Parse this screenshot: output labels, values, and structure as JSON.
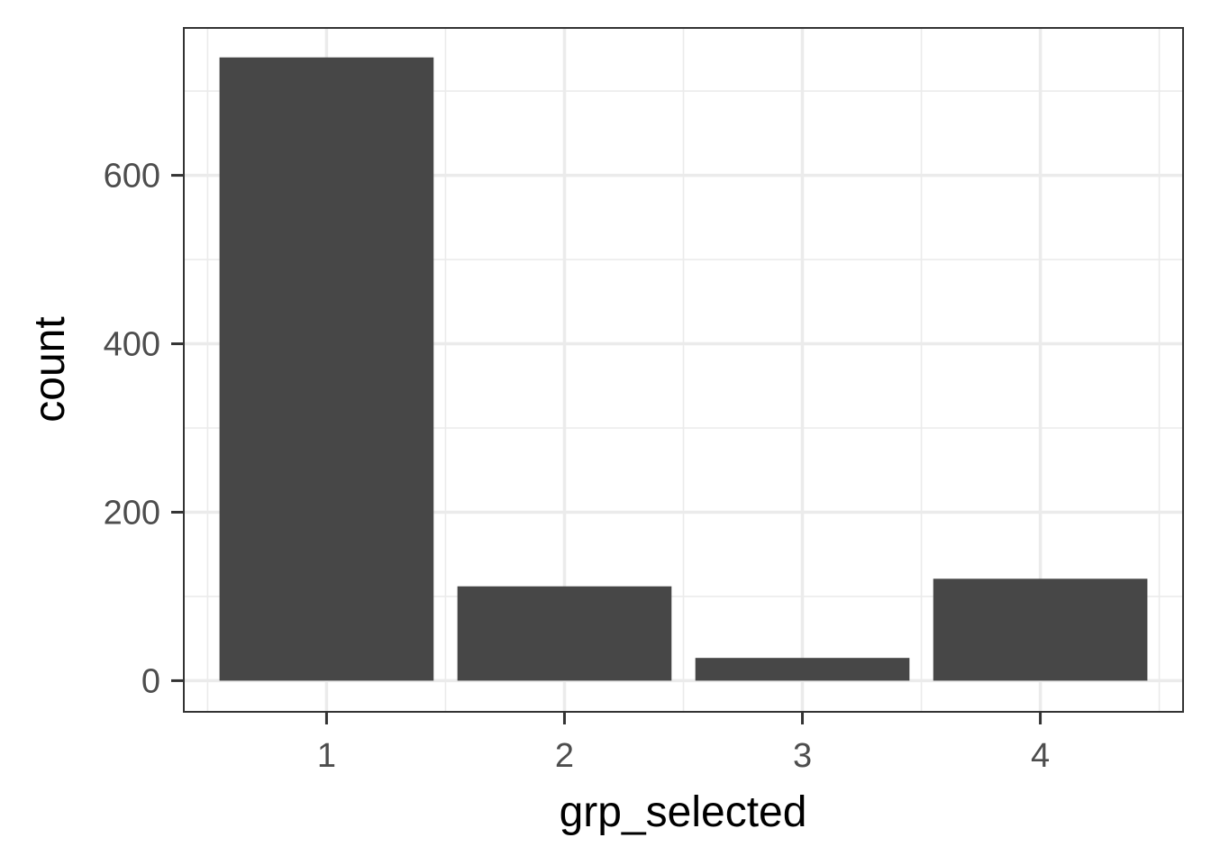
{
  "chart_data": {
    "type": "bar",
    "categories": [
      "1",
      "2",
      "3",
      "4"
    ],
    "values": [
      740,
      112,
      27,
      121
    ],
    "title": "",
    "xlabel": "grp_selected",
    "ylabel": "count",
    "ylim": [
      -37,
      775
    ],
    "yticks": [
      0,
      200,
      400,
      600
    ],
    "ytick_labels": [
      "0",
      "200",
      "400",
      "600"
    ],
    "grid": true,
    "legend": "none",
    "bar_color": "#474747",
    "grid_color": "#ebebeb",
    "panel_border_color": "#333333"
  }
}
